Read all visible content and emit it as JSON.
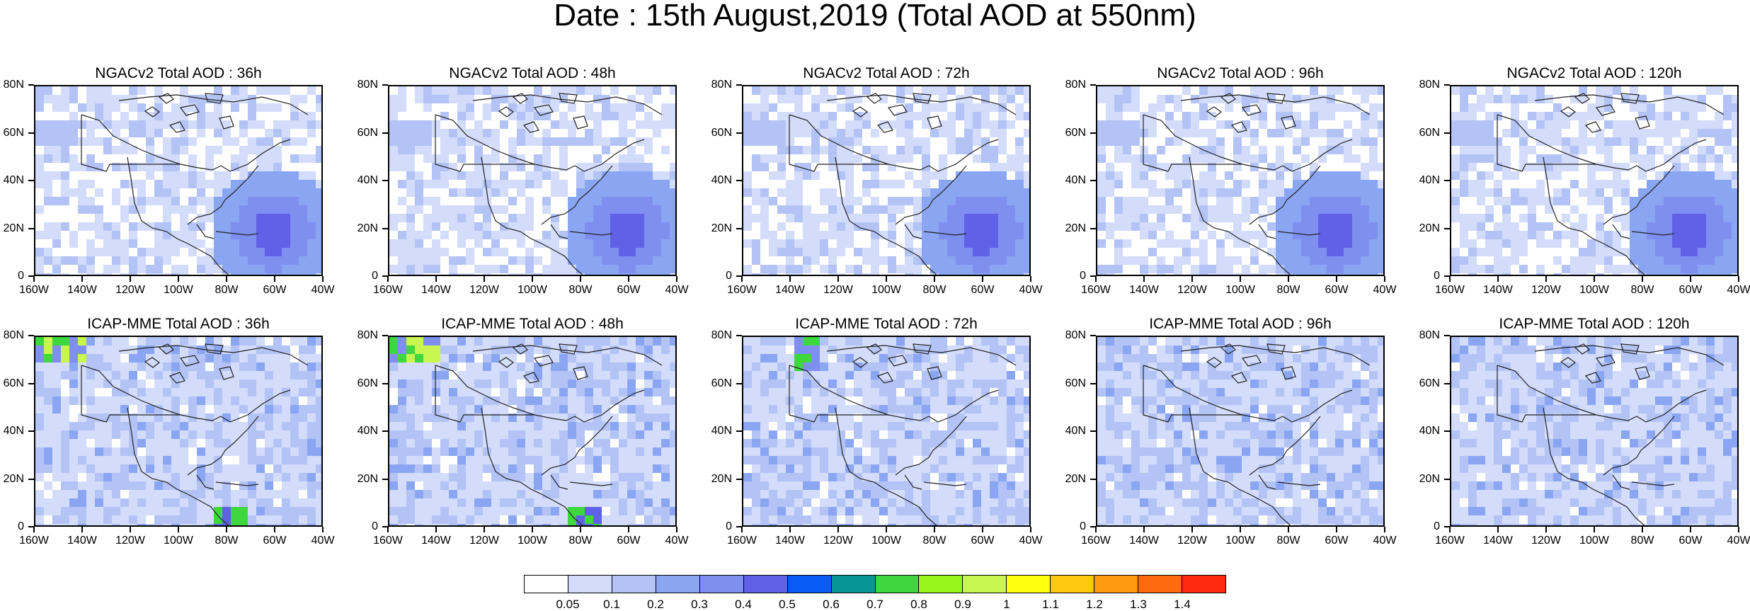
{
  "title": "Date : 15th August,2019 (Total AOD at 550nm)",
  "rows": [
    {
      "model": "NGACv2",
      "panels": [
        {
          "title": "NGACv2 Total AOD : 36h",
          "lead": "36h"
        },
        {
          "title": "NGACv2 Total AOD : 48h",
          "lead": "48h"
        },
        {
          "title": "NGACv2 Total AOD : 72h",
          "lead": "72h"
        },
        {
          "title": "NGACv2 Total AOD : 96h",
          "lead": "96h"
        },
        {
          "title": "NGACv2 Total AOD : 120h",
          "lead": "120h"
        }
      ]
    },
    {
      "model": "ICAP-MME",
      "panels": [
        {
          "title": "ICAP-MME Total AOD : 36h",
          "lead": "36h"
        },
        {
          "title": "ICAP-MME Total AOD : 48h",
          "lead": "48h"
        },
        {
          "title": "ICAP-MME Total AOD : 72h",
          "lead": "72h"
        },
        {
          "title": "ICAP-MME Total AOD : 96h",
          "lead": "96h"
        },
        {
          "title": "ICAP-MME Total AOD : 120h",
          "lead": "120h"
        }
      ]
    }
  ],
  "axes": {
    "lat_labels": [
      "80N",
      "60N",
      "40N",
      "20N",
      "0"
    ],
    "lon_labels": [
      "160W",
      "140W",
      "120W",
      "100W",
      "80W",
      "60W",
      "40W"
    ]
  },
  "colorbar": {
    "labels": [
      "0.05",
      "0.1",
      "0.2",
      "0.3",
      "0.4",
      "0.5",
      "0.6",
      "0.7",
      "0.8",
      "0.9",
      "1",
      "1.1",
      "1.2",
      "1.3",
      "1.4"
    ],
    "colors": [
      "#ffffff",
      "#d3dcfa",
      "#b3c3f5",
      "#8aa6f2",
      "#7f8ff0",
      "#5f62e6",
      "#0a5af5",
      "#069696",
      "#3ed73e",
      "#96f51c",
      "#c8f550",
      "#ffff10",
      "#ffc810",
      "#ff9a10",
      "#ff6a10",
      "#ff2a10"
    ]
  },
  "icons": {
    "map": "north-america-coastline-icon"
  }
}
